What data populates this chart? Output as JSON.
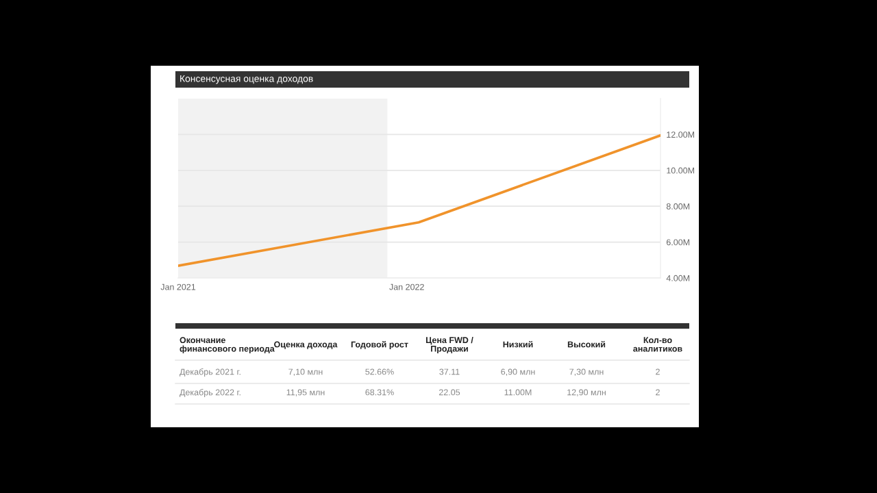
{
  "chart_data": {
    "type": "line",
    "title": "Консенсусная оценка доходов",
    "x": [
      "2021-01",
      "2022-01-20",
      "2023-02-10"
    ],
    "series": [
      {
        "color": "#f0932b",
        "values": [
          4.68,
          7.1,
          11.95
        ]
      }
    ],
    "xlim": [
      "2021-01",
      "2023-02-10"
    ],
    "xticks": [
      {
        "value": "2021-01",
        "label": "Jan 2021"
      },
      {
        "value": "2022-01",
        "label": "Jan 2022"
      }
    ],
    "ylim": [
      4,
      14
    ],
    "yticks": [
      {
        "value": 4,
        "label": "4.00M"
      },
      {
        "value": 6,
        "label": "6.00M"
      },
      {
        "value": 8,
        "label": "8.00M"
      },
      {
        "value": 10,
        "label": "10.00M"
      },
      {
        "value": 12,
        "label": "12.00M"
      }
    ],
    "bands": [
      {
        "axis": "x",
        "from": "2021-01",
        "to": "2021-12",
        "color": "#f2f2f2"
      }
    ],
    "grid": "y",
    "legend": false,
    "marker": "none",
    "line_style": "solid",
    "annotations": [
      "Окончание\nфинансового периода",
      "Оценка дохода",
      "Годовой рост",
      "Цена FWD /\nПродажи",
      "Низкий",
      "Высокий",
      "Кол-во\nаналитиков",
      "Декабрь 2021 г.",
      "7,10 млн",
      "52.66%",
      "37.11",
      "6,90 млн",
      "7,30 млн",
      "2",
      "Декабрь 2022 г.",
      "11,95 млн",
      "68.31%",
      "22.05",
      "11.00M",
      "12,90 млн",
      "2"
    ]
  }
}
